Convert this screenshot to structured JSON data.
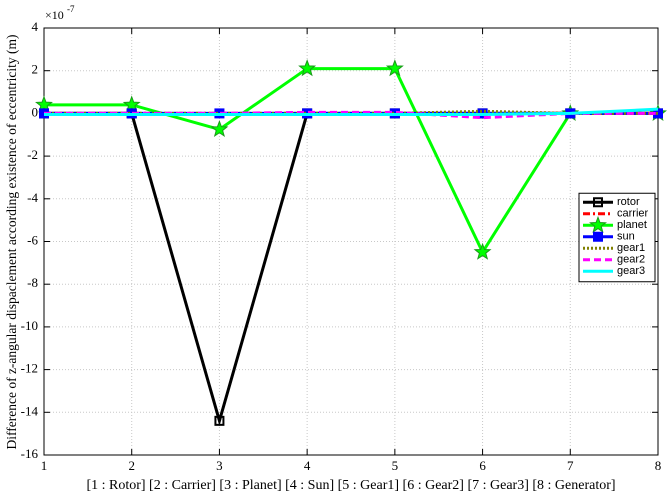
{
  "chart_data": {
    "type": "line",
    "y_label": "Difference of z-angular dispaclement according existence of eccentricity (m)",
    "x_label": "[1 : Rotor] [2 : Carrier] [3 : Planet] [4 : Sun] [5 : Gear1] [6 : Gear2] [7 : Gear3] [8 : Generator]",
    "y_multiplier": "×10",
    "y_multiplier_exponent": "-7",
    "x": [
      1,
      2,
      3,
      4,
      5,
      6,
      7,
      8
    ],
    "xlim": [
      1,
      8
    ],
    "xticks": [
      1,
      2,
      3,
      4,
      5,
      6,
      7,
      8
    ],
    "ylim": [
      -16,
      4
    ],
    "yticks": [
      -16,
      -14,
      -12,
      -10,
      -8,
      -6,
      -4,
      -2,
      0,
      2,
      4
    ],
    "grid": true,
    "legend": "east",
    "series": [
      {
        "name": "rotor",
        "color": "#000000",
        "line_style": "solid",
        "marker": "square",
        "values": [
          0,
          0,
          -14.4,
          0,
          0,
          0,
          0,
          0
        ]
      },
      {
        "name": "carrier",
        "color": "#ff0000",
        "line_style": "dashdot",
        "marker": "none",
        "values": [
          0,
          0,
          0,
          0,
          0,
          0,
          0,
          0
        ]
      },
      {
        "name": "planet",
        "color": "#00ff00",
        "line_style": "solid",
        "marker": "star",
        "values": [
          0.4,
          0.4,
          -0.75,
          2.1,
          2.1,
          -6.5,
          0,
          0
        ]
      },
      {
        "name": "sun",
        "color": "#0000ff",
        "line_style": "solid",
        "marker": "square",
        "values": [
          0,
          0,
          0,
          0,
          0,
          0,
          0,
          0
        ]
      },
      {
        "name": "gear1",
        "color": "#808000",
        "line_style": "dotted",
        "marker": "none",
        "values": [
          0,
          0,
          0,
          0,
          0,
          0.1,
          0,
          0
        ]
      },
      {
        "name": "gear2",
        "color": "#ff00ff",
        "line_style": "dashed",
        "marker": "none",
        "values": [
          0,
          0,
          0,
          0.05,
          0.05,
          -0.2,
          0,
          0
        ]
      },
      {
        "name": "gear3",
        "color": "#00ffff",
        "line_style": "solid",
        "marker": "none",
        "values": [
          -0.05,
          -0.05,
          -0.05,
          -0.05,
          -0.05,
          -0.05,
          0,
          0.2
        ]
      }
    ]
  }
}
